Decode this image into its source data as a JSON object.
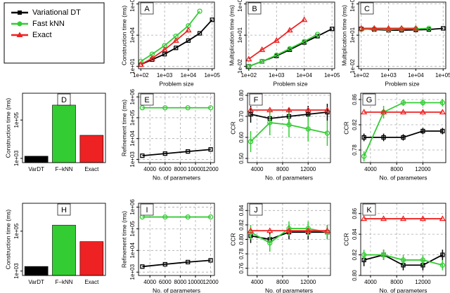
{
  "chart_data": [
    {
      "type": "line",
      "title": "A",
      "ylabel": "Construction time (ms)",
      "xlabel": "Problem size",
      "xscale": "log",
      "yscale": "log",
      "xlim": [
        80,
        125000
      ],
      "ylim": [
        6,
        15000000
      ],
      "xticks": [
        {
          "value": 100,
          "label": "1e+02"
        },
        {
          "value": 1000,
          "label": "1e+03"
        },
        {
          "value": 10000,
          "label": "1e+04"
        },
        {
          "value": 100000,
          "label": "1e+05"
        }
      ],
      "yticks": [
        {
          "value": 10,
          "label": "1e+01"
        },
        {
          "value": 10000,
          "label": "1e+04"
        },
        {
          "value": 10000000,
          "label": "1e+07"
        }
      ],
      "x": [
        100,
        300,
        1000,
        3000,
        10000,
        30000,
        100000
      ],
      "series": [
        {
          "name": "Variational DT",
          "color": "#000000",
          "values": [
            15,
            45,
            150,
            600,
            3000,
            15000,
            300000
          ]
        },
        {
          "name": "Fast kNN",
          "color": "#33cc33",
          "values": [
            30,
            150,
            1000,
            8000,
            80000,
            2000000,
            null
          ]
        },
        {
          "name": "Exact",
          "color": "#ee2222",
          "values": [
            15,
            60,
            400,
            3000,
            30000,
            null,
            null
          ]
        }
      ]
    },
    {
      "type": "line",
      "title": "B",
      "ylabel": "Multiplication time (ms)",
      "xlabel": "Problem size",
      "xscale": "log",
      "yscale": "log",
      "xlim": [
        80,
        125000
      ],
      "ylim": [
        0.006,
        15000
      ],
      "xticks": [
        {
          "value": 100,
          "label": "1e+02"
        },
        {
          "value": 1000,
          "label": "1e+03"
        },
        {
          "value": 10000,
          "label": "1e+04"
        },
        {
          "value": 100000,
          "label": "1e+05"
        }
      ],
      "yticks": [
        {
          "value": 0.01,
          "label": "1e-02"
        },
        {
          "value": 10,
          "label": "1e+01"
        },
        {
          "value": 10000,
          "label": "1e+04"
        }
      ],
      "x": [
        100,
        300,
        1000,
        3000,
        10000,
        30000,
        100000
      ],
      "series": [
        {
          "name": "Variational DT",
          "color": "#000000",
          "values": [
            0.01,
            0.03,
            0.1,
            0.4,
            2,
            8,
            40
          ]
        },
        {
          "name": "Fast kNN",
          "color": "#33cc33",
          "values": [
            0.01,
            0.03,
            0.12,
            0.5,
            2.5,
            12,
            null
          ]
        },
        {
          "name": "Exact",
          "color": "#ee2222",
          "values": [
            0.05,
            0.4,
            3,
            30,
            300,
            null,
            null
          ]
        }
      ]
    },
    {
      "type": "line",
      "title": "C",
      "ylabel": "Multiplication time (ms)",
      "xlabel": "Problem size",
      "xscale": "log",
      "yscale": "log",
      "xlim": [
        80,
        125000
      ],
      "ylim": [
        0.006,
        15000
      ],
      "xticks": [
        {
          "value": 100,
          "label": "1e+02"
        },
        {
          "value": 1000,
          "label": "1e+03"
        },
        {
          "value": 10000,
          "label": "1e+04"
        },
        {
          "value": 100000,
          "label": "1e+05"
        }
      ],
      "yticks": [
        {
          "value": 0.01,
          "label": "1e-02"
        },
        {
          "value": 10,
          "label": "1e+01"
        },
        {
          "value": 10000,
          "label": "1e+04"
        }
      ],
      "x": [
        100,
        300,
        1000,
        3000,
        10000,
        30000,
        100000
      ],
      "series": [
        {
          "name": "Variational DT",
          "color": "#000000",
          "values": [
            40,
            35,
            30,
            30,
            32,
            35,
            45
          ]
        },
        {
          "name": "Fast kNN",
          "color": "#33cc33",
          "values": [
            35,
            40,
            35,
            40,
            40,
            45,
            null
          ]
        },
        {
          "name": "Exact",
          "color": "#ee2222",
          "values": [
            45,
            45,
            45,
            45,
            45,
            null,
            null
          ]
        }
      ]
    },
    {
      "type": "bar",
      "title": "D",
      "ylabel": "Construction time (ms)",
      "yscale": "log",
      "ylim": [
        600,
        2500000
      ],
      "yticks": [
        {
          "value": 1000,
          "label": "1e+03"
        },
        {
          "value": 100000,
          "label": "1e+05"
        }
      ],
      "categories": [
        "VarDT",
        "F−kNN",
        "Exact"
      ],
      "values": [
        1300,
        600000,
        16000
      ],
      "colors": [
        "#000000",
        "#33cc33",
        "#ee2222"
      ]
    },
    {
      "type": "line",
      "title": "E",
      "ylabel": "Refinement time (ms)",
      "xlabel": "No. of parameters",
      "yscale": "log",
      "xlim": [
        2500,
        12500
      ],
      "ylim": [
        700,
        1500000
      ],
      "xticks": [
        4000,
        6000,
        8000,
        10000,
        12000
      ],
      "yticks": [
        {
          "value": 1000,
          "label": "1e+03"
        },
        {
          "value": 10000,
          "label": "1e+04"
        },
        {
          "value": 100000,
          "label": "1e+05"
        },
        {
          "value": 1000000,
          "label": "1e+06"
        }
      ],
      "x": [
        3000,
        6000,
        9000,
        12000
      ],
      "series": [
        {
          "name": "Variational DT",
          "color": "#000000",
          "values": [
            1500,
            1900,
            2400,
            3000
          ]
        },
        {
          "name": "Fast kNN",
          "color": "#33cc33",
          "values": [
            300000,
            300000,
            300000,
            300000
          ]
        }
      ]
    },
    {
      "type": "line",
      "title": "F",
      "ylabel": "CCR",
      "xlabel": "No. of parameters",
      "xlim": [
        2500,
        15500
      ],
      "ylim": [
        0.48,
        0.81
      ],
      "xticks": [
        4000,
        8000,
        12000
      ],
      "yticks": [
        {
          "value": 0.5,
          "label": "0.50"
        },
        {
          "value": 0.6,
          "label": "0.60"
        },
        {
          "value": 0.7,
          "label": "0.70"
        },
        {
          "value": 0.8,
          "label": "0.80"
        }
      ],
      "x": [
        3000,
        6000,
        9000,
        12000,
        15000
      ],
      "series": [
        {
          "name": "Variational DT",
          "color": "#000000",
          "values": [
            0.71,
            0.69,
            0.7,
            0.71,
            0.72
          ],
          "errors": [
            0.04,
            0.04,
            0.04,
            0.04,
            0.04
          ]
        },
        {
          "name": "Fast kNN",
          "color": "#33cc33",
          "values": [
            0.58,
            0.67,
            0.66,
            0.64,
            0.62
          ],
          "errors": [
            0.05,
            0.06,
            0.06,
            0.06,
            0.06
          ]
        },
        {
          "name": "Exact",
          "color": "#ee2222",
          "values": [
            0.73,
            0.73,
            0.73,
            0.73,
            0.73
          ]
        }
      ]
    },
    {
      "type": "line",
      "title": "G",
      "ylabel": "CCR",
      "xlabel": "No. of parameters",
      "xlim": [
        2500,
        15500
      ],
      "ylim": [
        0.76,
        0.87
      ],
      "xticks": [
        4000,
        8000,
        12000
      ],
      "yticks": [
        0.78,
        0.82,
        0.86
      ],
      "x": [
        3000,
        6000,
        9000,
        12000,
        15000
      ],
      "series": [
        {
          "name": "Variational DT",
          "color": "#000000",
          "values": [
            0.8,
            0.8,
            0.8,
            0.81,
            0.81
          ],
          "errors": [
            0.006,
            0.006,
            0.005,
            0.005,
            0.005
          ]
        },
        {
          "name": "Fast kNN",
          "color": "#33cc33",
          "values": [
            0.77,
            0.84,
            0.855,
            0.855,
            0.855
          ],
          "errors": [
            0.008,
            0.01,
            0.005,
            0.005,
            0.006
          ]
        },
        {
          "name": "Exact",
          "color": "#ee2222",
          "values": [
            0.84,
            0.84,
            0.84,
            0.84,
            0.84
          ]
        }
      ]
    },
    {
      "type": "bar",
      "title": "H",
      "ylabel": "Construction time (ms)",
      "yscale": "log",
      "ylim": [
        600,
        2500000
      ],
      "yticks": [
        {
          "value": 1000,
          "label": "1e+03"
        },
        {
          "value": 100000,
          "label": "1e+05"
        }
      ],
      "categories": [
        "VarDT",
        "F−kNN",
        "Exact"
      ],
      "values": [
        1700,
        200000,
        30000
      ],
      "colors": [
        "#000000",
        "#33cc33",
        "#ee2222"
      ]
    },
    {
      "type": "line",
      "title": "I",
      "ylabel": "Refinement time (ms)",
      "xlabel": "No. of parameters",
      "yscale": "log",
      "xlim": [
        2500,
        12500
      ],
      "ylim": [
        700,
        1500000
      ],
      "xticks": [
        4000,
        6000,
        8000,
        10000,
        12000
      ],
      "yticks": [
        {
          "value": 1000,
          "label": "1e+03"
        },
        {
          "value": 10000,
          "label": "1e+04"
        },
        {
          "value": 100000,
          "label": "1e+05"
        },
        {
          "value": 1000000,
          "label": "1e+06"
        }
      ],
      "x": [
        3000,
        6000,
        9000,
        12000
      ],
      "series": [
        {
          "name": "Variational DT",
          "color": "#000000",
          "values": [
            1800,
            2300,
            2900,
            3500
          ]
        },
        {
          "name": "Fast kNN",
          "color": "#33cc33",
          "values": [
            350000,
            350000,
            350000,
            350000
          ]
        }
      ]
    },
    {
      "type": "line",
      "title": "J",
      "ylabel": "CCR",
      "xlabel": "No. of parameters",
      "xlim": [
        2500,
        15500
      ],
      "ylim": [
        0.75,
        0.85
      ],
      "xticks": [
        4000,
        8000,
        12000
      ],
      "yticks": [
        {
          "value": 0.76,
          "label": "0.76"
        },
        {
          "value": 0.78,
          "label": "0.78"
        },
        {
          "value": 0.8,
          "label": "0.80"
        },
        {
          "value": 0.82,
          "label": "0.82"
        },
        {
          "value": 0.84,
          "label": "0.84"
        }
      ],
      "x": [
        3000,
        6000,
        9000,
        12000,
        15000
      ],
      "series": [
        {
          "name": "Variational DT",
          "color": "#000000",
          "values": [
            0.805,
            0.8,
            0.81,
            0.81,
            0.81
          ],
          "errors": [
            0.01,
            0.01,
            0.01,
            0.01,
            0.01
          ]
        },
        {
          "name": "Fast kNN",
          "color": "#33cc33",
          "values": [
            0.81,
            0.795,
            0.815,
            0.815,
            0.81
          ],
          "errors": [
            0.01,
            0.012,
            0.01,
            0.01,
            0.01
          ]
        },
        {
          "name": "Exact",
          "color": "#ee2222",
          "values": [
            0.812,
            0.812,
            0.812,
            0.812,
            0.812
          ]
        }
      ]
    },
    {
      "type": "line",
      "title": "K",
      "ylabel": "CCR",
      "xlabel": "No. of parameters",
      "xlim": [
        2500,
        15500
      ],
      "ylim": [
        0.8,
        0.87
      ],
      "xticks": [
        4000,
        8000,
        12000
      ],
      "yticks": [
        {
          "value": 0.8,
          "label": "0.80"
        },
        0.82,
        0.84,
        0.86
      ],
      "x": [
        3000,
        6000,
        9000,
        12000,
        15000
      ],
      "series": [
        {
          "name": "Variational DT",
          "color": "#000000",
          "values": [
            0.815,
            0.82,
            0.81,
            0.81,
            0.82
          ],
          "errors": [
            0.006,
            0.005,
            0.005,
            0.005,
            0.005
          ]
        },
        {
          "name": "Fast kNN",
          "color": "#33cc33",
          "values": [
            0.82,
            0.82,
            0.815,
            0.815,
            0.81
          ],
          "errors": [
            0.005,
            0.005,
            0.005,
            0.005,
            0.005
          ]
        },
        {
          "name": "Exact",
          "color": "#ee2222",
          "values": [
            0.855,
            0.855,
            0.855,
            0.855,
            0.855
          ]
        }
      ]
    }
  ]
}
